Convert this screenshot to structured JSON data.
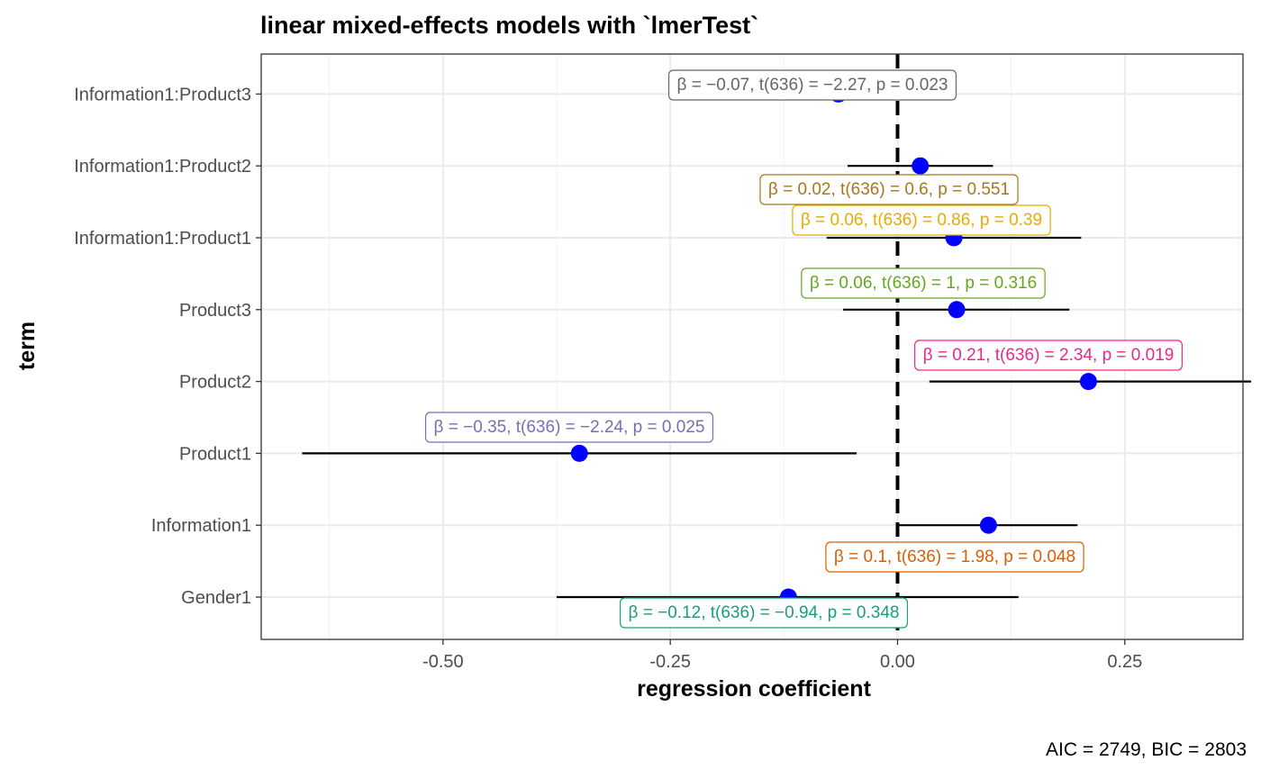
{
  "chart_data": {
    "type": "scatter",
    "title": "linear mixed-effects models with `lmerTest`",
    "xlabel": "regression coefficient",
    "ylabel": "term",
    "caption": "AIC = 2749, BIC = 2803",
    "xlim": [
      -0.7,
      0.38
    ],
    "x_ticks": [
      -0.5,
      -0.25,
      0.0,
      0.25
    ],
    "x_tick_labels": [
      "-0.50",
      "-0.25",
      "0.00",
      "0.25"
    ],
    "grid": true,
    "reference_line_x": 0,
    "point_color": "#0000ff",
    "terms": [
      {
        "term": "Gender1",
        "estimate": -0.12,
        "ci_low": -0.375,
        "ci_high": 0.133,
        "label": "β = −0.12, t(636) = −0.94, p = 0.348",
        "color": "#1b9e77"
      },
      {
        "term": "Information1",
        "estimate": 0.1,
        "ci_low": 0.002,
        "ci_high": 0.198,
        "label": "β = 0.1, t(636) = 1.98, p = 0.048",
        "color": "#d95f02"
      },
      {
        "term": "Product1",
        "estimate": -0.35,
        "ci_low": -0.655,
        "ci_high": -0.045,
        "label": "β = −0.35, t(636) = −2.24, p = 0.025",
        "color": "#7570b3"
      },
      {
        "term": "Product2",
        "estimate": 0.21,
        "ci_low": 0.035,
        "ci_high": 0.389,
        "label": "β = 0.21, t(636) = 2.34, p = 0.019",
        "color": "#e7298a"
      },
      {
        "term": "Product3",
        "estimate": 0.065,
        "ci_low": -0.06,
        "ci_high": 0.189,
        "label": "β = 0.06, t(636) = 1, p = 0.316",
        "color": "#66a61e"
      },
      {
        "term": "Information1:Product1",
        "estimate": 0.062,
        "ci_low": -0.078,
        "ci_high": 0.202,
        "label": "β = 0.06, t(636) = 0.86, p = 0.39",
        "color": "#e6ab02"
      },
      {
        "term": "Information1:Product2",
        "estimate": 0.025,
        "ci_low": -0.055,
        "ci_high": 0.105,
        "label": "β = 0.02, t(636) = 0.6, p = 0.551",
        "color": "#a6761d"
      },
      {
        "term": "Information1:Product3",
        "estimate": -0.065,
        "ci_low": -0.12,
        "ci_high": -0.01,
        "label": "β = −0.07, t(636) = −2.27, p = 0.023",
        "color": "#666666"
      }
    ]
  }
}
